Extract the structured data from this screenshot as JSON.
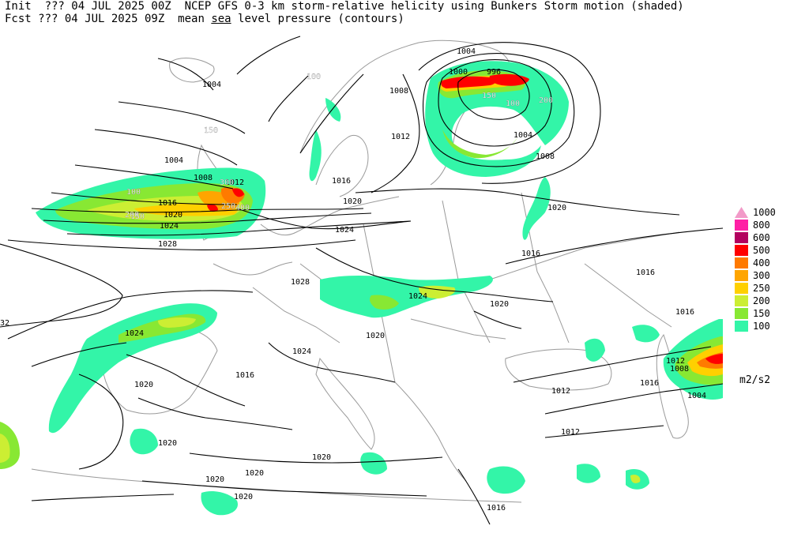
{
  "header": {
    "line1_prefix": "Init  ??? 04 JUL 2025 00Z  ",
    "line1_title": "NCEP GFS 0-3 km storm-relative helicity using Bunkers Storm motion (shaded)",
    "line2_prefix": "Fcst ??? 04 JUL 2025 09Z  ",
    "line2_pre": "mean ",
    "line2_underlined": "sea",
    "line2_post": " level pressure (contours)"
  },
  "legend": {
    "items": [
      {
        "label": "1000",
        "color": "#f29ac8"
      },
      {
        "label": "800",
        "color": "#ff1fa5"
      },
      {
        "label": "600",
        "color": "#b3005f"
      },
      {
        "label": "500",
        "color": "#ff0000"
      },
      {
        "label": "400",
        "color": "#ff7a00"
      },
      {
        "label": "300",
        "color": "#ffa500"
      },
      {
        "label": "250",
        "color": "#ffd000"
      },
      {
        "label": "200",
        "color": "#ccee33"
      },
      {
        "label": "150",
        "color": "#88e833"
      },
      {
        "label": "100",
        "color": "#33f5a8"
      }
    ],
    "units": "m2/s2"
  },
  "isobar_labels": [
    "1004",
    "1004",
    "1008",
    "1012",
    "1016",
    "1020",
    "1024",
    "1028",
    "1004",
    "1000",
    "996",
    "1008",
    "1012",
    "1004",
    "1008",
    "1016",
    "1020",
    "1024",
    "1028",
    "1024",
    "1020",
    "1024",
    "1020",
    "1020",
    "1016",
    "1012",
    "1016",
    "1016",
    "1012",
    "1008",
    "1004",
    "1020",
    "1020",
    "1020",
    "1020",
    "1016",
    "32",
    "1020",
    "1024",
    "1020",
    "1012",
    "1016",
    "1016"
  ],
  "srh_labels": [
    "100",
    "150",
    "200",
    "250",
    "300",
    "400",
    "100",
    "150",
    "200",
    "100",
    "150"
  ]
}
